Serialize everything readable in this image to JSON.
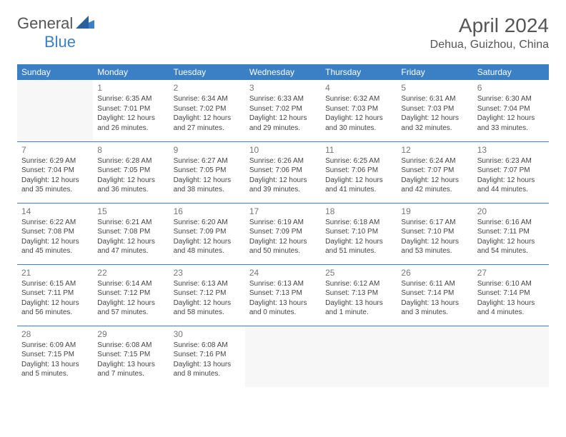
{
  "logo": {
    "general": "General",
    "blue": "Blue"
  },
  "title": "April 2024",
  "location": "Dehua, Guizhou, China",
  "colors": {
    "accent": "#3b7fc4",
    "text": "#444",
    "muted": "#777",
    "empty_bg": "#f7f7f7"
  },
  "weekdays": [
    "Sunday",
    "Monday",
    "Tuesday",
    "Wednesday",
    "Thursday",
    "Friday",
    "Saturday"
  ],
  "weeks": [
    [
      null,
      {
        "n": "1",
        "sr": "Sunrise: 6:35 AM",
        "ss": "Sunset: 7:01 PM",
        "d1": "Daylight: 12 hours",
        "d2": "and 26 minutes."
      },
      {
        "n": "2",
        "sr": "Sunrise: 6:34 AM",
        "ss": "Sunset: 7:02 PM",
        "d1": "Daylight: 12 hours",
        "d2": "and 27 minutes."
      },
      {
        "n": "3",
        "sr": "Sunrise: 6:33 AM",
        "ss": "Sunset: 7:02 PM",
        "d1": "Daylight: 12 hours",
        "d2": "and 29 minutes."
      },
      {
        "n": "4",
        "sr": "Sunrise: 6:32 AM",
        "ss": "Sunset: 7:03 PM",
        "d1": "Daylight: 12 hours",
        "d2": "and 30 minutes."
      },
      {
        "n": "5",
        "sr": "Sunrise: 6:31 AM",
        "ss": "Sunset: 7:03 PM",
        "d1": "Daylight: 12 hours",
        "d2": "and 32 minutes."
      },
      {
        "n": "6",
        "sr": "Sunrise: 6:30 AM",
        "ss": "Sunset: 7:04 PM",
        "d1": "Daylight: 12 hours",
        "d2": "and 33 minutes."
      }
    ],
    [
      {
        "n": "7",
        "sr": "Sunrise: 6:29 AM",
        "ss": "Sunset: 7:04 PM",
        "d1": "Daylight: 12 hours",
        "d2": "and 35 minutes."
      },
      {
        "n": "8",
        "sr": "Sunrise: 6:28 AM",
        "ss": "Sunset: 7:05 PM",
        "d1": "Daylight: 12 hours",
        "d2": "and 36 minutes."
      },
      {
        "n": "9",
        "sr": "Sunrise: 6:27 AM",
        "ss": "Sunset: 7:05 PM",
        "d1": "Daylight: 12 hours",
        "d2": "and 38 minutes."
      },
      {
        "n": "10",
        "sr": "Sunrise: 6:26 AM",
        "ss": "Sunset: 7:06 PM",
        "d1": "Daylight: 12 hours",
        "d2": "and 39 minutes."
      },
      {
        "n": "11",
        "sr": "Sunrise: 6:25 AM",
        "ss": "Sunset: 7:06 PM",
        "d1": "Daylight: 12 hours",
        "d2": "and 41 minutes."
      },
      {
        "n": "12",
        "sr": "Sunrise: 6:24 AM",
        "ss": "Sunset: 7:07 PM",
        "d1": "Daylight: 12 hours",
        "d2": "and 42 minutes."
      },
      {
        "n": "13",
        "sr": "Sunrise: 6:23 AM",
        "ss": "Sunset: 7:07 PM",
        "d1": "Daylight: 12 hours",
        "d2": "and 44 minutes."
      }
    ],
    [
      {
        "n": "14",
        "sr": "Sunrise: 6:22 AM",
        "ss": "Sunset: 7:08 PM",
        "d1": "Daylight: 12 hours",
        "d2": "and 45 minutes."
      },
      {
        "n": "15",
        "sr": "Sunrise: 6:21 AM",
        "ss": "Sunset: 7:08 PM",
        "d1": "Daylight: 12 hours",
        "d2": "and 47 minutes."
      },
      {
        "n": "16",
        "sr": "Sunrise: 6:20 AM",
        "ss": "Sunset: 7:09 PM",
        "d1": "Daylight: 12 hours",
        "d2": "and 48 minutes."
      },
      {
        "n": "17",
        "sr": "Sunrise: 6:19 AM",
        "ss": "Sunset: 7:09 PM",
        "d1": "Daylight: 12 hours",
        "d2": "and 50 minutes."
      },
      {
        "n": "18",
        "sr": "Sunrise: 6:18 AM",
        "ss": "Sunset: 7:10 PM",
        "d1": "Daylight: 12 hours",
        "d2": "and 51 minutes."
      },
      {
        "n": "19",
        "sr": "Sunrise: 6:17 AM",
        "ss": "Sunset: 7:10 PM",
        "d1": "Daylight: 12 hours",
        "d2": "and 53 minutes."
      },
      {
        "n": "20",
        "sr": "Sunrise: 6:16 AM",
        "ss": "Sunset: 7:11 PM",
        "d1": "Daylight: 12 hours",
        "d2": "and 54 minutes."
      }
    ],
    [
      {
        "n": "21",
        "sr": "Sunrise: 6:15 AM",
        "ss": "Sunset: 7:11 PM",
        "d1": "Daylight: 12 hours",
        "d2": "and 56 minutes."
      },
      {
        "n": "22",
        "sr": "Sunrise: 6:14 AM",
        "ss": "Sunset: 7:12 PM",
        "d1": "Daylight: 12 hours",
        "d2": "and 57 minutes."
      },
      {
        "n": "23",
        "sr": "Sunrise: 6:13 AM",
        "ss": "Sunset: 7:12 PM",
        "d1": "Daylight: 12 hours",
        "d2": "and 58 minutes."
      },
      {
        "n": "24",
        "sr": "Sunrise: 6:13 AM",
        "ss": "Sunset: 7:13 PM",
        "d1": "Daylight: 13 hours",
        "d2": "and 0 minutes."
      },
      {
        "n": "25",
        "sr": "Sunrise: 6:12 AM",
        "ss": "Sunset: 7:13 PM",
        "d1": "Daylight: 13 hours",
        "d2": "and 1 minute."
      },
      {
        "n": "26",
        "sr": "Sunrise: 6:11 AM",
        "ss": "Sunset: 7:14 PM",
        "d1": "Daylight: 13 hours",
        "d2": "and 3 minutes."
      },
      {
        "n": "27",
        "sr": "Sunrise: 6:10 AM",
        "ss": "Sunset: 7:14 PM",
        "d1": "Daylight: 13 hours",
        "d2": "and 4 minutes."
      }
    ],
    [
      {
        "n": "28",
        "sr": "Sunrise: 6:09 AM",
        "ss": "Sunset: 7:15 PM",
        "d1": "Daylight: 13 hours",
        "d2": "and 5 minutes."
      },
      {
        "n": "29",
        "sr": "Sunrise: 6:08 AM",
        "ss": "Sunset: 7:15 PM",
        "d1": "Daylight: 13 hours",
        "d2": "and 7 minutes."
      },
      {
        "n": "30",
        "sr": "Sunrise: 6:08 AM",
        "ss": "Sunset: 7:16 PM",
        "d1": "Daylight: 13 hours",
        "d2": "and 8 minutes."
      },
      null,
      null,
      null,
      null
    ]
  ]
}
